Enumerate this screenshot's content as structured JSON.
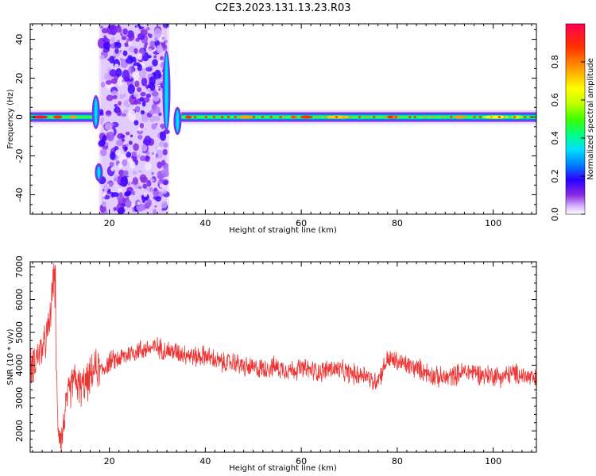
{
  "figure_title": "C2E3.2023.131.13.23.R03",
  "colors": {
    "snr_line": "#ee3333",
    "axis": "#000000",
    "colormap": [
      "#ffffff",
      "#d9b8ff",
      "#8a2be2",
      "#2a00ff",
      "#0080ff",
      "#00e0ff",
      "#00ff80",
      "#40ff00",
      "#c0ff00",
      "#ffff00",
      "#ffa000",
      "#ff3000",
      "#ff0050"
    ]
  },
  "chart_data": [
    {
      "type": "heatmap",
      "title": "",
      "xlabel": "Height of straight line (km)",
      "ylabel": "Frequency (Hz)",
      "xlim": [
        3.5,
        109
      ],
      "ylim": [
        -50,
        48
      ],
      "xticks": [
        20,
        40,
        60,
        80,
        100
      ],
      "yticks": [
        -40,
        -20,
        0,
        20,
        40
      ],
      "colorbar": {
        "label": "Normalized spectral amplitude",
        "range": [
          0,
          1
        ],
        "ticks": [
          0.0,
          0.2,
          0.4,
          0.6,
          0.8
        ]
      },
      "features": {
        "noise_band_km": [
          18.3,
          32.0
        ],
        "narrow_band_hz": [
          -3,
          3
        ],
        "spikes": [
          {
            "km": 17.2,
            "freq_range": [
              -5,
              10
            ]
          },
          {
            "km": 17.8,
            "freq_range": [
              -32,
              -25
            ]
          },
          {
            "km": 31.9,
            "freq_range": [
              -6,
              33
            ]
          },
          {
            "km": 34.2,
            "freq_range": [
              -8,
              4
            ]
          }
        ]
      }
    },
    {
      "type": "line",
      "title": "",
      "xlabel": "Height of straight line (km)",
      "ylabel": "SNR (10 * v/v)",
      "xlim": [
        3.5,
        109
      ],
      "ylim": [
        1350,
        7150
      ],
      "xticks": [
        20,
        40,
        60,
        80,
        100
      ],
      "yticks": [
        2000,
        3000,
        4000,
        5000,
        6000,
        7000
      ],
      "series": [
        {
          "x": [
            3.5,
            5,
            6.5,
            7.5,
            8.5,
            9.2,
            10,
            11,
            12.5,
            14,
            15.5,
            17,
            18.5,
            20,
            22,
            24,
            26,
            28,
            30,
            32,
            34,
            36,
            38,
            40,
            42,
            44,
            46,
            48,
            50,
            52,
            54,
            56,
            58,
            60,
            62,
            64,
            66,
            68,
            70,
            72,
            73.5,
            75,
            76.5,
            78,
            80,
            82,
            84,
            86,
            88,
            90,
            92,
            94,
            96,
            98,
            100,
            102,
            104,
            106,
            108,
            109
          ],
          "values": [
            3900,
            4300,
            4600,
            5200,
            6900,
            2400,
            1700,
            2800,
            3600,
            3300,
            3500,
            3900,
            3850,
            4100,
            4200,
            4350,
            4450,
            4500,
            4550,
            4450,
            4400,
            4350,
            4250,
            4300,
            4150,
            4050,
            4100,
            3950,
            3900,
            3900,
            3950,
            3900,
            3850,
            3900,
            3850,
            3800,
            3900,
            3850,
            3750,
            3700,
            3750,
            3450,
            3700,
            4200,
            4100,
            4000,
            3900,
            3800,
            3650,
            3600,
            3700,
            3800,
            3800,
            3700,
            3700,
            3650,
            3750,
            3700,
            3600,
            3550
          ]
        }
      ]
    }
  ]
}
